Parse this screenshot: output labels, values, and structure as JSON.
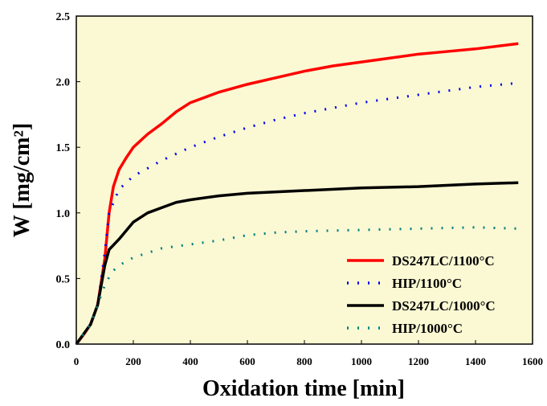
{
  "chart_data": {
    "type": "line",
    "xlabel": "Oxidation time [min]",
    "ylabel": "W [mg/cm²]",
    "xlim": [
      0,
      1600
    ],
    "ylim": [
      0,
      2.5
    ],
    "xticks": [
      0,
      200,
      400,
      600,
      800,
      1000,
      1200,
      1400,
      1600
    ],
    "yticks": [
      {
        "value": 0,
        "label": "0.0"
      },
      0.5,
      {
        "value": 1,
        "label": "1.0"
      },
      1.5,
      {
        "value": 2,
        "label": "2.0"
      },
      2.5
    ],
    "legend": "lower right",
    "series": [
      {
        "name": "DS247LC/1100°C",
        "color": "#ff0000",
        "style": "solid",
        "x": [
          0,
          25,
          50,
          75,
          100,
          115,
          130,
          150,
          175,
          200,
          250,
          300,
          350,
          400,
          500,
          600,
          700,
          800,
          900,
          1000,
          1100,
          1200,
          1300,
          1400,
          1550
        ],
        "values": [
          0,
          0.07,
          0.15,
          0.3,
          0.65,
          1.0,
          1.2,
          1.33,
          1.42,
          1.5,
          1.6,
          1.68,
          1.77,
          1.84,
          1.92,
          1.98,
          2.03,
          2.08,
          2.12,
          2.15,
          2.18,
          2.21,
          2.23,
          2.25,
          2.29
        ]
      },
      {
        "name": "HIP/1100°C",
        "color": "#0000ee",
        "style": "dotted",
        "x": [
          0,
          50,
          75,
          100,
          115,
          150,
          200,
          300,
          400,
          500,
          600,
          700,
          800,
          900,
          1000,
          1100,
          1200,
          1300,
          1400,
          1550
        ],
        "values": [
          0,
          0.15,
          0.3,
          0.7,
          1.0,
          1.18,
          1.28,
          1.4,
          1.5,
          1.58,
          1.65,
          1.71,
          1.76,
          1.8,
          1.84,
          1.87,
          1.9,
          1.93,
          1.96,
          1.99
        ]
      },
      {
        "name": "DS247LC/1000°C",
        "color": "#000000",
        "style": "solid",
        "x": [
          0,
          50,
          75,
          100,
          115,
          150,
          200,
          250,
          300,
          350,
          400,
          500,
          600,
          800,
          1000,
          1200,
          1400,
          1550
        ],
        "values": [
          0,
          0.15,
          0.3,
          0.6,
          0.72,
          0.8,
          0.93,
          1.0,
          1.04,
          1.08,
          1.1,
          1.13,
          1.15,
          1.17,
          1.19,
          1.2,
          1.22,
          1.23
        ]
      },
      {
        "name": "HIP/1000°C",
        "color": "#008080",
        "style": "dotted",
        "x": [
          0,
          50,
          75,
          100,
          125,
          150,
          200,
          300,
          400,
          500,
          600,
          700,
          800,
          1000,
          1200,
          1400,
          1550
        ],
        "values": [
          0,
          0.15,
          0.3,
          0.45,
          0.55,
          0.6,
          0.66,
          0.73,
          0.76,
          0.79,
          0.83,
          0.85,
          0.86,
          0.87,
          0.88,
          0.89,
          0.88
        ]
      }
    ]
  }
}
